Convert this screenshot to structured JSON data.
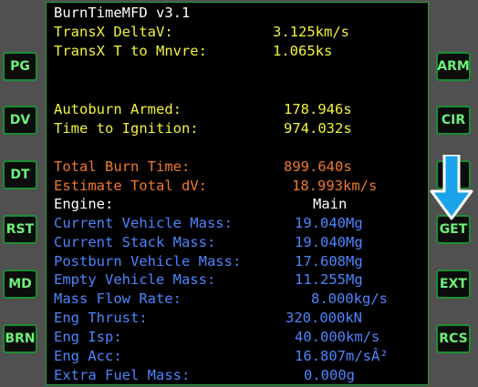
{
  "mfd": {
    "title": "BurnTimeMFD v3.1",
    "rows": [
      {
        "label": "TransX DeltaV:",
        "value": "3.125km/s",
        "color": "#f2f23a"
      },
      {
        "label": "TransX T to Mnvre:",
        "value": "1.065ks",
        "color": "#f2f23a"
      },
      {
        "label": "Autoburn Armed:",
        "value": "178.946s",
        "color": "#f2f23a"
      },
      {
        "label": "Time to Ignition:",
        "value": "974.032s",
        "color": "#f2f23a"
      },
      {
        "label": "Total Burn Time:",
        "value": "899.640s",
        "color": "#f0792a"
      },
      {
        "label": "Estimate Total dV:",
        "value": "18.993km/s",
        "color": "#f0792a"
      },
      {
        "label": "Engine:",
        "value": "Main",
        "color": "#ffffff"
      },
      {
        "label": "Current Vehicle Mass:",
        "value": "19.040Mg",
        "color": "#4c86ff"
      },
      {
        "label": "Current Stack Mass:",
        "value": "19.040Mg",
        "color": "#4c86ff"
      },
      {
        "label": "Postburn Vehicle Mass:",
        "value": "17.608Mg",
        "color": "#4c86ff"
      },
      {
        "label": "Empty Vehicle Mass:",
        "value": "11.255Mg",
        "color": "#4c86ff"
      },
      {
        "label": "Mass Flow Rate:",
        "value": "8.000kg/s",
        "color": "#4c86ff"
      },
      {
        "label": "Eng Thrust:",
        "value": "320.000kN",
        "color": "#4c86ff"
      },
      {
        "label": "Eng Isp:",
        "value": "40.000km/s",
        "color": "#4c86ff"
      },
      {
        "label": "Eng Acc:",
        "value": "16.807m/sÂ²",
        "color": "#4c86ff"
      },
      {
        "label": "Extra Fuel Mass:",
        "value": "0.000g",
        "color": "#4c86ff"
      }
    ]
  },
  "left_buttons": [
    "PG",
    "DV",
    "DT",
    "RST",
    "MD",
    "BRN"
  ],
  "right_buttons": [
    "ARM",
    "CIR",
    "",
    "GET",
    "EXT",
    "RCS"
  ],
  "colors": {
    "button_text": "#6cf07a",
    "button_border": "#1b8d32",
    "screen_border": "#1fa03a",
    "arrow": "#1aa3e8"
  }
}
